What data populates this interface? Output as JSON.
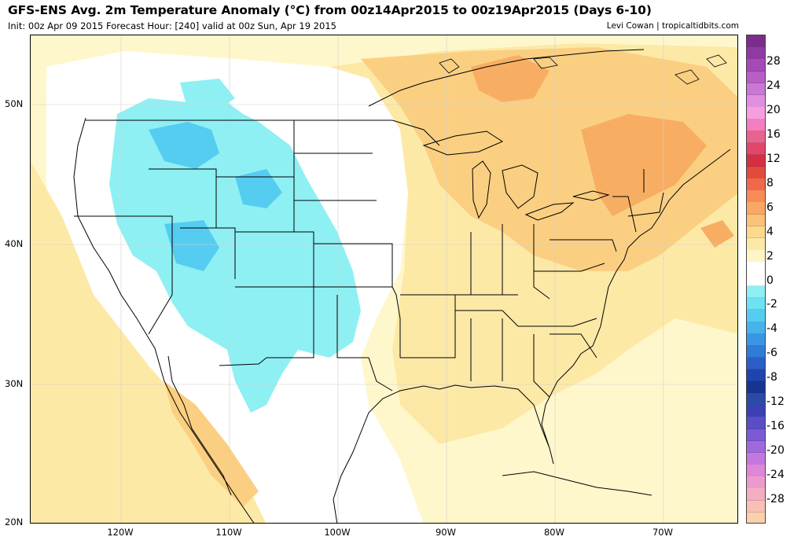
{
  "header": {
    "title": "GFS-ENS Avg. 2m Temperature Anomaly (°C) from 00z14Apr2015 to 00z19Apr2015 (Days 6-10)",
    "subtitle": "Init: 00z Apr 09 2015   Forecast Hour: [240]   valid at 00z Sun, Apr 19 2015",
    "credit": "Levi Cowan | tropicaltidbits.com"
  },
  "axes": {
    "lat_labels": [
      "50N",
      "40N",
      "30N",
      "20N"
    ],
    "lon_labels": [
      "120W",
      "110W",
      "100W",
      "90W",
      "80W",
      "70W"
    ]
  },
  "colorbar": {
    "labels": [
      "28",
      "24",
      "20",
      "16",
      "12",
      "8",
      "6",
      "4",
      "2",
      "0",
      "-2",
      "-4",
      "-6",
      "-8",
      "-12",
      "-16",
      "-20",
      "-24",
      "-28"
    ],
    "colors": [
      "#7b2c8c",
      "#8f3aa3",
      "#a549b8",
      "#b85fc7",
      "#ca78d4",
      "#e08fe0",
      "#f79ee0",
      "#f27fbf",
      "#e8638f",
      "#e0476b",
      "#d62f44",
      "#e04b3c",
      "#f0674a",
      "#f78a57",
      "#f9a763",
      "#fbc27a",
      "#fdd98c",
      "#fde9a6",
      "#fff4c6",
      "#ffffff",
      "#ffffff",
      "#8ef0f3",
      "#6ee2f2",
      "#55cdf0",
      "#46b3ec",
      "#3a96e3",
      "#2f7bd8",
      "#2a5fc7",
      "#1f44ad",
      "#163593",
      "#2b4aa6",
      "#3d3fb5",
      "#5a4dc5",
      "#7b5ad3",
      "#a068dd",
      "#c477dd",
      "#df86d6",
      "#ee99cc",
      "#f4aec2",
      "#f8c0b4",
      "#fbd0ad"
    ],
    "palette": {
      "cold_light": "#8ef0f3",
      "cold_mid": "#6fe3f4",
      "cold_dark": "#4fcdef",
      "neutral": "#ffffff",
      "warm_pale": "#fff7cc",
      "warm_light": "#fde9a6",
      "warm_mid": "#fbcf82",
      "warm_strong": "#f7ae63",
      "warm_hot": "#f49a56"
    }
  }
}
